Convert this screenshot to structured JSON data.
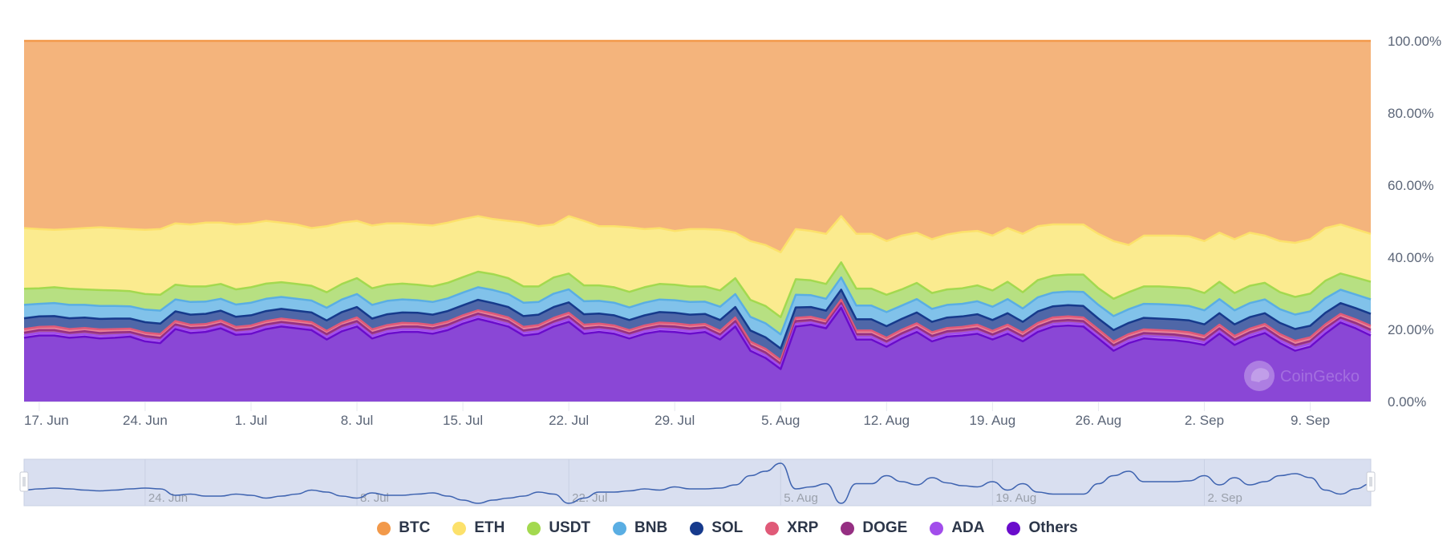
{
  "chart_data": {
    "type": "area",
    "stacking": "percent",
    "title": "",
    "xlabel": "",
    "ylabel": "",
    "ylim": [
      0,
      100
    ],
    "yticks": [
      "0.00%",
      "20.00%",
      "40.00%",
      "60.00%",
      "80.00%",
      "100.00%"
    ],
    "y_axis_side": "right",
    "x_start": "16 Jun",
    "x_end": "13 Sep",
    "x_interval": "1 day",
    "xticks": [
      "17. Jun",
      "24. Jun",
      "1. Jul",
      "8. Jul",
      "15. Jul",
      "22. Jul",
      "29. Jul",
      "5. Aug",
      "12. Aug",
      "19. Aug",
      "26. Aug",
      "2. Sep",
      "9. Sep"
    ],
    "legend_position": "bottom-center",
    "grid": false,
    "series": [
      {
        "name": "BTC",
        "color": "#f2994a",
        "fill": "#f4b47c",
        "values": [
          51.9,
          52.2,
          52.4,
          52.2,
          51.9,
          51.7,
          51.9,
          52.2,
          52.4,
          52.2,
          50.6,
          50.9,
          50.4,
          50.4,
          50.9,
          50.6,
          49.9,
          50.4,
          50.9,
          51.9,
          51.4,
          50.4,
          49.9,
          51.2,
          50.6,
          50.6,
          50.9,
          51.2,
          50.4,
          49.4,
          48.6,
          49.4,
          49.9,
          50.4,
          51.4,
          50.9,
          48.6,
          49.9,
          51.4,
          51.4,
          51.7,
          52.2,
          51.9,
          52.7,
          52.2,
          52.2,
          52.4,
          53.2,
          55.5,
          56.6,
          58.6,
          52.2,
          52.7,
          53.5,
          48.6,
          53.5,
          53.5,
          55.5,
          54.0,
          53.2,
          55.0,
          53.7,
          53.0,
          52.7,
          54.0,
          51.9,
          53.5,
          51.4,
          50.9,
          50.9,
          50.9,
          53.5,
          55.5,
          56.6,
          54.0,
          54.0,
          54.0,
          54.2,
          55.5,
          53.2,
          55.0,
          53.2,
          54.0,
          55.5,
          56.0,
          55.0,
          51.9,
          50.9,
          52.2,
          53.5
        ]
      },
      {
        "name": "ETH",
        "color": "#fce16b",
        "fill": "#fbeb8f",
        "values": [
          16.8,
          16.4,
          15.9,
          16.5,
          17.0,
          17.4,
          17.3,
          17.2,
          17.8,
          18.2,
          17.0,
          17.2,
          17.7,
          17.0,
          18.0,
          17.7,
          17.4,
          16.5,
          16.5,
          16.0,
          18.3,
          17.0,
          15.9,
          17.4,
          17.0,
          16.7,
          16.7,
          16.9,
          16.7,
          16.1,
          15.4,
          15.3,
          15.9,
          17.7,
          16.7,
          14.7,
          15.9,
          17.9,
          16.4,
          16.9,
          17.9,
          16.1,
          15.5,
          14.9,
          15.9,
          15.9,
          16.8,
          12.6,
          16.3,
          16.9,
          18.0,
          13.9,
          13.7,
          13.9,
          12.8,
          15.2,
          15.2,
          14.9,
          14.9,
          13.9,
          14.9,
          15.2,
          15.6,
          15.1,
          15.2,
          14.9,
          16.2,
          14.9,
          14.2,
          13.9,
          13.9,
          15.1,
          16.0,
          13.1,
          14.1,
          14.1,
          14.3,
          14.4,
          14.4,
          13.6,
          14.9,
          14.7,
          13.1,
          14.2,
          15.0,
          15.1,
          14.6,
          13.6,
          13.4,
          13.3
        ]
      },
      {
        "name": "USDT",
        "color": "#a3d94f",
        "fill": "#b7e082",
        "values": [
          4.5,
          4.3,
          4.4,
          4.5,
          4.3,
          4.4,
          4.3,
          4.2,
          4.3,
          4.4,
          4.1,
          4.3,
          4.2,
          4.1,
          4.2,
          4.3,
          4.2,
          4.1,
          4.1,
          4.1,
          4.3,
          4.3,
          4.4,
          4.6,
          4.5,
          4.4,
          4.3,
          4.3,
          4.3,
          4.3,
          4.3,
          4.4,
          4.4,
          4.5,
          4.3,
          4.5,
          4.4,
          4.4,
          4.3,
          4.3,
          4.3,
          4.3,
          4.3,
          4.3,
          4.3,
          4.2,
          4.5,
          4.4,
          4.7,
          4.8,
          4.8,
          4.3,
          4.1,
          4.1,
          4.2,
          4.7,
          4.7,
          4.8,
          4.5,
          4.5,
          4.4,
          4.3,
          4.3,
          4.4,
          4.5,
          4.8,
          4.5,
          4.8,
          4.7,
          4.7,
          4.8,
          4.6,
          4.8,
          4.7,
          4.8,
          4.9,
          4.9,
          4.9,
          4.8,
          4.8,
          4.8,
          4.8,
          4.6,
          4.7,
          4.9,
          4.9,
          4.9,
          4.5,
          4.7,
          4.9
        ]
      },
      {
        "name": "BNB",
        "color": "#5aaee3",
        "fill": "#81c2ea",
        "values": [
          3.7,
          3.5,
          3.6,
          3.7,
          3.5,
          3.6,
          3.5,
          3.4,
          3.5,
          3.6,
          3.3,
          3.5,
          3.4,
          3.3,
          3.4,
          3.5,
          3.4,
          3.3,
          3.3,
          3.3,
          3.5,
          3.5,
          3.6,
          3.8,
          3.7,
          3.6,
          3.5,
          3.5,
          3.5,
          3.5,
          3.5,
          3.6,
          3.6,
          3.7,
          3.5,
          3.7,
          3.6,
          3.6,
          3.5,
          3.5,
          3.5,
          3.5,
          3.5,
          3.5,
          3.5,
          3.4,
          3.7,
          3.6,
          3.8,
          3.9,
          3.9,
          3.5,
          3.3,
          3.3,
          3.4,
          3.8,
          3.8,
          3.9,
          3.7,
          3.7,
          3.6,
          3.5,
          3.5,
          3.6,
          3.7,
          3.9,
          3.7,
          3.9,
          3.8,
          3.8,
          3.9,
          3.8,
          3.9,
          3.8,
          3.9,
          4.0,
          4.0,
          4.0,
          3.9,
          3.9,
          3.9,
          3.9,
          3.8,
          3.8,
          4.0,
          4.0,
          4.0,
          3.7,
          3.8,
          4.0
        ]
      },
      {
        "name": "SOL",
        "color": "#163a8c",
        "fill": "#4f67a8",
        "values": [
          3.0,
          2.9,
          2.9,
          3.0,
          2.9,
          2.9,
          2.9,
          2.8,
          2.9,
          2.9,
          2.7,
          2.8,
          2.8,
          2.7,
          2.8,
          2.8,
          2.8,
          2.7,
          2.7,
          2.7,
          2.9,
          2.9,
          2.9,
          3.0,
          3.0,
          2.9,
          2.9,
          2.9,
          2.9,
          2.8,
          2.9,
          2.9,
          2.9,
          3.0,
          2.9,
          3.0,
          2.9,
          2.9,
          2.8,
          2.8,
          2.8,
          2.8,
          2.9,
          2.9,
          2.9,
          2.8,
          3.0,
          2.9,
          3.1,
          3.2,
          3.2,
          2.9,
          2.7,
          2.7,
          2.8,
          3.1,
          3.1,
          3.2,
          3.0,
          3.0,
          2.9,
          2.9,
          2.9,
          2.9,
          3.0,
          3.2,
          3.0,
          3.2,
          3.1,
          3.1,
          3.2,
          3.0,
          3.2,
          3.1,
          3.2,
          3.2,
          3.2,
          3.3,
          3.2,
          3.2,
          3.2,
          3.2,
          3.0,
          3.1,
          3.3,
          3.2,
          3.2,
          3.0,
          3.1,
          3.3
        ]
      },
      {
        "name": "XRP",
        "color": "#e05a78",
        "fill": "#e7839a",
        "values": [
          1.0,
          0.9,
          1.0,
          1.0,
          0.9,
          1.0,
          0.9,
          0.9,
          0.9,
          1.0,
          0.9,
          0.9,
          0.9,
          0.9,
          0.9,
          0.9,
          0.9,
          0.9,
          0.9,
          0.9,
          0.9,
          0.9,
          1.0,
          1.0,
          1.0,
          1.0,
          0.9,
          0.9,
          0.9,
          0.9,
          0.9,
          1.0,
          1.0,
          1.0,
          0.9,
          1.0,
          1.0,
          1.0,
          0.9,
          0.9,
          0.9,
          0.9,
          0.9,
          0.9,
          0.9,
          0.9,
          1.0,
          1.0,
          1.0,
          1.0,
          1.0,
          0.9,
          0.9,
          0.9,
          0.9,
          1.0,
          1.0,
          1.0,
          1.0,
          1.0,
          1.0,
          0.9,
          0.9,
          1.0,
          1.0,
          1.0,
          1.0,
          1.0,
          1.0,
          1.0,
          1.0,
          1.0,
          1.0,
          1.0,
          1.0,
          1.0,
          1.0,
          1.1,
          1.0,
          1.0,
          1.0,
          1.0,
          1.0,
          1.0,
          1.1,
          1.0,
          1.0,
          1.0,
          1.0,
          1.1
        ]
      },
      {
        "name": "DOGE",
        "color": "#952f82",
        "fill": "#a9579b",
        "values": [
          0.7,
          0.8,
          0.8,
          0.7,
          0.8,
          0.8,
          0.8,
          0.7,
          0.8,
          0.8,
          0.7,
          0.7,
          0.7,
          0.7,
          0.7,
          0.7,
          0.7,
          0.7,
          0.7,
          0.7,
          0.8,
          0.8,
          0.8,
          0.8,
          0.7,
          0.8,
          0.8,
          0.8,
          0.8,
          0.7,
          0.8,
          0.8,
          0.8,
          0.7,
          0.8,
          0.7,
          0.8,
          0.8,
          0.7,
          0.7,
          0.7,
          0.7,
          0.8,
          0.8,
          0.8,
          0.7,
          0.7,
          0.8,
          0.8,
          0.8,
          0.8,
          0.8,
          0.7,
          0.7,
          0.7,
          0.8,
          0.8,
          0.8,
          0.7,
          0.7,
          0.8,
          0.8,
          0.8,
          0.8,
          0.7,
          0.8,
          0.7,
          0.8,
          0.8,
          0.8,
          0.8,
          0.8,
          0.8,
          0.8,
          0.8,
          0.8,
          0.8,
          0.8,
          0.8,
          0.8,
          0.8,
          0.8,
          0.8,
          0.8,
          0.8,
          0.8,
          0.8,
          0.7,
          0.8,
          0.8
        ]
      },
      {
        "name": "ADA",
        "color": "#a24deb",
        "fill": "#b57cf0",
        "values": [
          0.7,
          0.7,
          0.7,
          0.7,
          0.7,
          0.7,
          0.7,
          0.6,
          0.7,
          0.7,
          0.6,
          0.7,
          0.6,
          0.6,
          0.6,
          0.7,
          0.6,
          0.6,
          0.6,
          0.6,
          0.7,
          0.7,
          0.7,
          0.7,
          0.7,
          0.7,
          0.7,
          0.7,
          0.7,
          0.7,
          0.7,
          0.7,
          0.7,
          0.7,
          0.7,
          0.7,
          0.7,
          0.7,
          0.7,
          0.7,
          0.7,
          0.7,
          0.7,
          0.7,
          0.7,
          0.6,
          0.7,
          0.7,
          0.7,
          0.7,
          0.7,
          0.7,
          0.6,
          0.6,
          0.6,
          0.7,
          0.7,
          0.7,
          0.7,
          0.7,
          0.7,
          0.7,
          0.7,
          0.7,
          0.7,
          0.7,
          0.7,
          0.7,
          0.7,
          0.7,
          0.7,
          0.7,
          0.7,
          0.7,
          0.7,
          0.8,
          0.8,
          0.8,
          0.7,
          0.7,
          0.7,
          0.7,
          0.7,
          0.7,
          0.8,
          0.8,
          0.8,
          0.7,
          0.7,
          0.8
        ]
      },
      {
        "name": "Others",
        "color": "#6a0ccc",
        "fill": "#8a47d6",
        "values": [
          17.7,
          18.3,
          18.3,
          17.7,
          18.0,
          17.5,
          17.7,
          18.0,
          16.7,
          16.2,
          20.1,
          19.0,
          19.3,
          20.3,
          18.5,
          18.8,
          20.1,
          20.8,
          20.3,
          19.8,
          17.2,
          19.5,
          20.8,
          17.5,
          18.8,
          19.3,
          19.3,
          18.8,
          19.8,
          21.6,
          22.9,
          21.9,
          20.8,
          18.3,
          18.8,
          20.8,
          22.1,
          18.8,
          19.3,
          18.8,
          17.5,
          18.8,
          19.5,
          19.3,
          18.8,
          19.3,
          17.2,
          20.8,
          14.1,
          12.1,
          9.0,
          20.8,
          21.3,
          20.3,
          26.0,
          17.2,
          17.2,
          15.2,
          17.5,
          19.3,
          16.7,
          18.0,
          18.3,
          18.8,
          17.2,
          18.8,
          16.7,
          19.3,
          20.8,
          21.1,
          20.8,
          17.5,
          14.1,
          16.2,
          17.5,
          17.2,
          17.0,
          16.5,
          15.7,
          18.8,
          15.7,
          17.7,
          19.0,
          16.2,
          14.1,
          15.2,
          18.8,
          21.9,
          20.3,
          18.3
        ]
      }
    ],
    "navigator": {
      "series": "BTC",
      "labels": [
        "24. Jun",
        "8. Jul",
        "22. Jul",
        "5. Aug",
        "19. Aug",
        "2. Sep"
      ]
    }
  },
  "watermark": {
    "text": "CoinGecko",
    "icon": "gecko-logo-icon"
  }
}
